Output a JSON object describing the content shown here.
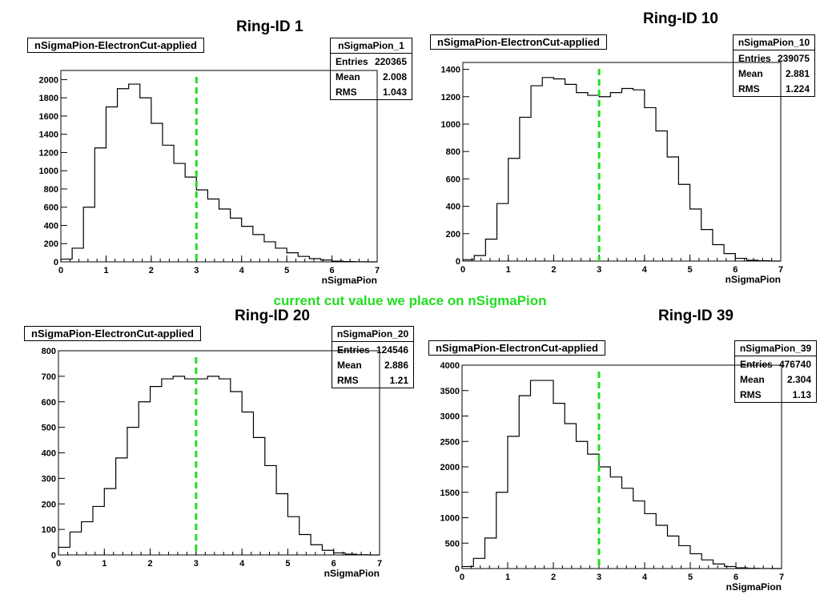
{
  "annotation": "current cut value we place on nSigmaPion",
  "colors": {
    "cut_line": "#22dd22",
    "histogram": "#000000"
  },
  "chart_data": [
    {
      "type": "histogram",
      "title": "Ring-ID 1",
      "subtitle": "nSigmaPion-ElectronCut-applied",
      "xlabel": "nSigmaPion",
      "ylabel": "",
      "xlim": [
        0,
        7
      ],
      "ylim": [
        0,
        2100
      ],
      "xticks": [
        0,
        1,
        2,
        3,
        4,
        5,
        6,
        7
      ],
      "yticks": [
        0,
        200,
        400,
        600,
        800,
        1000,
        1200,
        1400,
        1600,
        1800,
        2000
      ],
      "grid": false,
      "cut_value": 3,
      "stats": {
        "name": "nSigmaPion_1",
        "entries": "220365",
        "mean": "2.008",
        "rms": "1.043"
      },
      "series": [
        {
          "bin_width": 0.25,
          "x": [
            0,
            0.25,
            0.5,
            0.75,
            1,
            1.25,
            1.5,
            1.75,
            2,
            2.25,
            2.5,
            2.75,
            3,
            3.25,
            3.5,
            3.75,
            4,
            4.25,
            4.5,
            4.75,
            5,
            5.25,
            5.5,
            5.75,
            6,
            6.25,
            6.5,
            6.75
          ],
          "values": [
            30,
            150,
            600,
            1250,
            1700,
            1900,
            1950,
            1800,
            1520,
            1280,
            1080,
            930,
            790,
            690,
            580,
            480,
            390,
            300,
            220,
            150,
            100,
            60,
            35,
            20,
            8,
            3,
            1,
            0
          ]
        }
      ]
    },
    {
      "type": "histogram",
      "title": "Ring-ID 10",
      "subtitle": "nSigmaPion-ElectronCut-applied",
      "xlabel": "nSigmaPion",
      "ylabel": "",
      "xlim": [
        0,
        7
      ],
      "ylim": [
        0,
        1450
      ],
      "xticks": [
        0,
        1,
        2,
        3,
        4,
        5,
        6,
        7
      ],
      "yticks": [
        0,
        200,
        400,
        600,
        800,
        1000,
        1200,
        1400
      ],
      "grid": false,
      "cut_value": 3,
      "stats": {
        "name": "nSigmaPion_10",
        "entries": "239075",
        "mean": "2.881",
        "rms": "1.224"
      },
      "series": [
        {
          "bin_width": 0.25,
          "x": [
            0,
            0.25,
            0.5,
            0.75,
            1,
            1.25,
            1.5,
            1.75,
            2,
            2.25,
            2.5,
            2.75,
            3,
            3.25,
            3.5,
            3.75,
            4,
            4.25,
            4.5,
            4.75,
            5,
            5.25,
            5.5,
            5.75,
            6,
            6.25,
            6.5,
            6.75
          ],
          "values": [
            10,
            40,
            160,
            420,
            750,
            1050,
            1280,
            1340,
            1330,
            1290,
            1230,
            1210,
            1200,
            1230,
            1260,
            1250,
            1120,
            950,
            760,
            560,
            380,
            230,
            120,
            55,
            20,
            6,
            2,
            0
          ]
        }
      ]
    },
    {
      "type": "histogram",
      "title": "Ring-ID 20",
      "subtitle": "nSigmaPion-ElectronCut-applied",
      "xlabel": "nSigmaPion",
      "ylabel": "",
      "xlim": [
        0,
        7
      ],
      "ylim": [
        0,
        800
      ],
      "xticks": [
        0,
        1,
        2,
        3,
        4,
        5,
        6,
        7
      ],
      "yticks": [
        0,
        100,
        200,
        300,
        400,
        500,
        600,
        700,
        800
      ],
      "grid": false,
      "cut_value": 3,
      "stats": {
        "name": "nSigmaPion_20",
        "entries": "124546",
        "mean": "2.886",
        "rms": "1.21"
      },
      "series": [
        {
          "bin_width": 0.25,
          "x": [
            0,
            0.25,
            0.5,
            0.75,
            1,
            1.25,
            1.5,
            1.75,
            2,
            2.25,
            2.5,
            2.75,
            3,
            3.25,
            3.5,
            3.75,
            4,
            4.25,
            4.5,
            4.75,
            5,
            5.25,
            5.5,
            5.75,
            6,
            6.25,
            6.5,
            6.75
          ],
          "values": [
            30,
            90,
            130,
            190,
            260,
            380,
            500,
            600,
            660,
            690,
            700,
            690,
            690,
            700,
            690,
            640,
            560,
            460,
            350,
            240,
            150,
            80,
            40,
            18,
            8,
            3,
            1,
            0
          ]
        }
      ]
    },
    {
      "type": "histogram",
      "title": "Ring-ID 39",
      "subtitle": "nSigmaPion-ElectronCut-applied",
      "xlabel": "nSigmaPion",
      "ylabel": "",
      "xlim": [
        0,
        7
      ],
      "ylim": [
        0,
        4000
      ],
      "xticks": [
        0,
        1,
        2,
        3,
        4,
        5,
        6,
        7
      ],
      "yticks": [
        0,
        500,
        1000,
        1500,
        2000,
        2500,
        3000,
        3500,
        4000
      ],
      "grid": false,
      "cut_value": 3,
      "stats": {
        "name": "nSigmaPion_39",
        "entries": "476740",
        "mean": "2.304",
        "rms": "1.13"
      },
      "series": [
        {
          "bin_width": 0.25,
          "x": [
            0,
            0.25,
            0.5,
            0.75,
            1,
            1.25,
            1.5,
            1.75,
            2,
            2.25,
            2.5,
            2.75,
            3,
            3.25,
            3.5,
            3.75,
            4,
            4.25,
            4.5,
            4.75,
            5,
            5.25,
            5.5,
            5.75,
            6,
            6.25,
            6.5,
            6.75
          ],
          "values": [
            40,
            200,
            600,
            1500,
            2600,
            3400,
            3700,
            3700,
            3250,
            2850,
            2500,
            2250,
            2000,
            1800,
            1580,
            1330,
            1080,
            850,
            640,
            450,
            290,
            170,
            90,
            40,
            15,
            5,
            1,
            0
          ]
        }
      ]
    }
  ]
}
